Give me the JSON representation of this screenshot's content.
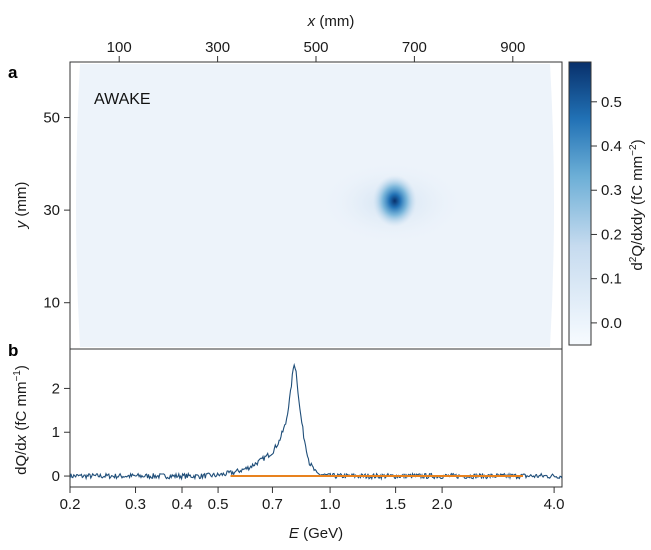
{
  "chart_data": [
    {
      "panel": "a",
      "type": "heatmap",
      "annotation": "AWAKE",
      "xlabel": {
        "var": "x",
        "unit": " (mm)"
      },
      "ylabel": {
        "var": "y",
        "unit": " (mm)"
      },
      "xlim": [
        0,
        1000
      ],
      "ylim": [
        0,
        62
      ],
      "x_ticks": [
        100,
        300,
        500,
        700,
        900
      ],
      "y_ticks": [
        10,
        30,
        50
      ],
      "peak": {
        "x": 660,
        "y": 32,
        "value": 0.55
      },
      "colorbar": {
        "range": [
          -0.05,
          0.59
        ],
        "ticks": [
          "0.0",
          "0.1",
          "0.2",
          "0.3",
          "0.4",
          "0.5"
        ],
        "tick_values": [
          0.0,
          0.1,
          0.2,
          0.3,
          0.4,
          0.5
        ],
        "label_parts": [
          "d",
          "2",
          "Q/d",
          "x",
          "d",
          "y",
          " (fC mm",
          "−2",
          ")"
        ]
      },
      "colors": {
        "low": "#f3f7fc",
        "mid": "#6aa6d6",
        "high": "#08306b"
      }
    },
    {
      "panel": "b",
      "type": "line",
      "x_scale": "log",
      "xlabel": {
        "var": "E",
        "unit": " (GeV)"
      },
      "ylabel_parts": [
        "dQ/d",
        "x",
        " (fC mm",
        "−1",
        ")"
      ],
      "xlim": [
        0.2,
        4.2
      ],
      "ylim": [
        -0.25,
        2.9
      ],
      "x_ticks": [
        0.2,
        0.3,
        0.4,
        0.5,
        0.7,
        1.0,
        1.5,
        2.0,
        4.0
      ],
      "x_tick_labels": [
        "0.2",
        "0.3",
        "0.4",
        "0.5",
        "0.7",
        "1.0",
        "1.5",
        "2.0",
        "4.0"
      ],
      "y_ticks": [
        0,
        1,
        2
      ],
      "series": [
        {
          "color": "#1f4e79",
          "points": [
            [
              0.2,
              0.0
            ],
            [
              0.3,
              0.0
            ],
            [
              0.45,
              0.0
            ],
            [
              0.5,
              0.02
            ],
            [
              0.55,
              0.08
            ],
            [
              0.6,
              0.18
            ],
            [
              0.65,
              0.35
            ],
            [
              0.7,
              0.55
            ],
            [
              0.73,
              0.8
            ],
            [
              0.76,
              1.2
            ],
            [
              0.78,
              1.8
            ],
            [
              0.79,
              2.2
            ],
            [
              0.8,
              2.6
            ],
            [
              0.81,
              2.4
            ],
            [
              0.83,
              1.5
            ],
            [
              0.85,
              0.9
            ],
            [
              0.88,
              0.3
            ],
            [
              0.92,
              0.05
            ],
            [
              1.0,
              0.0
            ],
            [
              1.5,
              0.0
            ],
            [
              2.0,
              0.0
            ],
            [
              4.2,
              0.0
            ]
          ]
        },
        {
          "color": "#e8821e",
          "points": [
            [
              0.54,
              0.0
            ],
            [
              3.3,
              0.0
            ]
          ]
        }
      ]
    }
  ],
  "figure": {
    "panel_a_letter": "a",
    "panel_b_letter": "b"
  }
}
